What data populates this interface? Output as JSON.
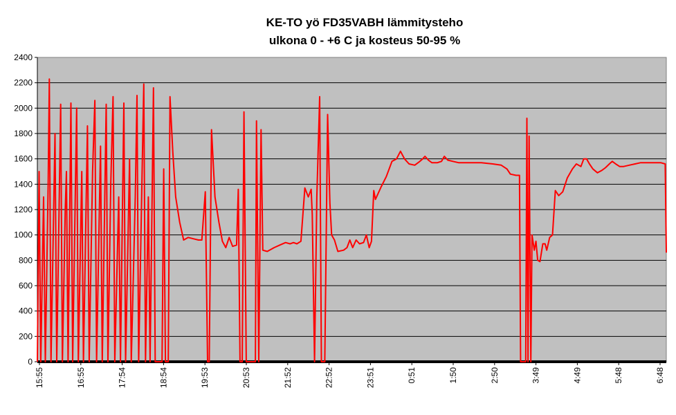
{
  "chart_data": {
    "type": "line",
    "title": "KE-TO yö FD35VABH lämmitysteho",
    "subtitle": "ulkona 0 - +6 C ja kosteus 50-95 %",
    "xlabel": "",
    "ylabel": "",
    "ylim": [
      0,
      2400
    ],
    "yticks": [
      "0",
      "200",
      "400",
      "600",
      "800",
      "1000",
      "1200",
      "1400",
      "1600",
      "1800",
      "2000",
      "2200",
      "2400"
    ],
    "xticks": [
      "15:55",
      "16:55",
      "17:54",
      "18:54",
      "19:53",
      "20:53",
      "21:52",
      "22:52",
      "23:51",
      "0:51",
      "1:50",
      "2:50",
      "3:49",
      "4:49",
      "5:48",
      "6:48"
    ],
    "grid": "horizontal",
    "legend": "none",
    "background_color": "#c0c0c0",
    "series": [
      {
        "color": "#ff0000",
        "points": [
          [
            0,
            0
          ],
          [
            0.3,
            1500
          ],
          [
            0.6,
            0
          ],
          [
            1.1,
            1300
          ],
          [
            1.4,
            0
          ],
          [
            1.9,
            1400
          ],
          [
            2.1,
            2230
          ],
          [
            2.4,
            0
          ],
          [
            3.1,
            1800
          ],
          [
            3.4,
            0
          ],
          [
            4.1,
            2030
          ],
          [
            4.4,
            0
          ],
          [
            4.9,
            1200
          ],
          [
            5.1,
            1500
          ],
          [
            5.4,
            0
          ],
          [
            5.9,
            2040
          ],
          [
            6.2,
            0
          ],
          [
            6.9,
            2000
          ],
          [
            7.2,
            0
          ],
          [
            7.8,
            1500
          ],
          [
            8.1,
            0
          ],
          [
            8.8,
            1860
          ],
          [
            9.1,
            0
          ],
          [
            9.7,
            1500
          ],
          [
            10.1,
            2060
          ],
          [
            10.4,
            0
          ],
          [
            11.1,
            1700
          ],
          [
            11.4,
            0
          ],
          [
            12.1,
            2030
          ],
          [
            12.4,
            0
          ],
          [
            12.9,
            1400
          ],
          [
            13.3,
            2090
          ],
          [
            13.6,
            0
          ],
          [
            14.3,
            1300
          ],
          [
            14.6,
            0
          ],
          [
            15.2,
            2040
          ],
          [
            15.5,
            0
          ],
          [
            16.2,
            1600
          ],
          [
            16.5,
            0
          ],
          [
            17.2,
            1300
          ],
          [
            17.5,
            2100
          ],
          [
            17.8,
            0
          ],
          [
            18.4,
            1500
          ],
          [
            18.7,
            2190
          ],
          [
            19.0,
            0
          ],
          [
            19.5,
            1300
          ],
          [
            19.8,
            0
          ],
          [
            20.4,
            2160
          ],
          [
            20.7,
            0
          ],
          [
            21.1,
            0
          ],
          [
            21.9,
            0
          ],
          [
            22.2,
            1520
          ],
          [
            22.5,
            0
          ],
          [
            23.0,
            0
          ],
          [
            23.3,
            2090
          ],
          [
            23.8,
            1650
          ],
          [
            24.3,
            1300
          ],
          [
            25.0,
            1100
          ],
          [
            25.7,
            960
          ],
          [
            26.5,
            980
          ],
          [
            27.4,
            970
          ],
          [
            28.3,
            960
          ],
          [
            28.9,
            960
          ],
          [
            29.5,
            1340
          ],
          [
            29.9,
            0
          ],
          [
            30.2,
            0
          ],
          [
            30.6,
            1830
          ],
          [
            31.2,
            1300
          ],
          [
            31.9,
            1100
          ],
          [
            32.5,
            950
          ],
          [
            33.1,
            900
          ],
          [
            33.7,
            980
          ],
          [
            34.3,
            910
          ],
          [
            35.0,
            920
          ],
          [
            35.3,
            1360
          ],
          [
            35.6,
            0
          ],
          [
            36.0,
            0
          ],
          [
            36.3,
            1970
          ],
          [
            36.7,
            0
          ],
          [
            37.6,
            0
          ],
          [
            38.3,
            0
          ],
          [
            38.5,
            1900
          ],
          [
            38.9,
            0
          ],
          [
            39.3,
            1830
          ],
          [
            39.6,
            880
          ],
          [
            40.4,
            870
          ],
          [
            41.6,
            900
          ],
          [
            42.6,
            920
          ],
          [
            43.6,
            940
          ],
          [
            44.4,
            930
          ],
          [
            45.0,
            940
          ],
          [
            45.6,
            930
          ],
          [
            46.3,
            950
          ],
          [
            47.0,
            1370
          ],
          [
            47.6,
            1300
          ],
          [
            48.1,
            1360
          ],
          [
            48.3,
            1160
          ],
          [
            48.7,
            0
          ],
          [
            49.1,
            1300
          ],
          [
            49.6,
            2090
          ],
          [
            49.9,
            0
          ],
          [
            50.5,
            0
          ],
          [
            51.0,
            1950
          ],
          [
            51.4,
            1250
          ],
          [
            51.7,
            1000
          ],
          [
            52.2,
            960
          ],
          [
            52.8,
            870
          ],
          [
            53.8,
            880
          ],
          [
            54.4,
            900
          ],
          [
            54.9,
            960
          ],
          [
            55.4,
            900
          ],
          [
            56.0,
            960
          ],
          [
            56.6,
            930
          ],
          [
            57.3,
            940
          ],
          [
            57.8,
            1000
          ],
          [
            58.3,
            900
          ],
          [
            58.7,
            950
          ],
          [
            59.1,
            1350
          ],
          [
            59.4,
            1280
          ],
          [
            60.4,
            1380
          ],
          [
            61.3,
            1460
          ],
          [
            62.3,
            1580
          ],
          [
            63.1,
            1600
          ],
          [
            63.8,
            1660
          ],
          [
            64.5,
            1600
          ],
          [
            65.3,
            1560
          ],
          [
            66.3,
            1550
          ],
          [
            67.2,
            1580
          ],
          [
            67.7,
            1600
          ],
          [
            68.1,
            1620
          ],
          [
            68.7,
            1590
          ],
          [
            69.3,
            1570
          ],
          [
            70.3,
            1570
          ],
          [
            71.0,
            1580
          ],
          [
            71.5,
            1620
          ],
          [
            72.1,
            1590
          ],
          [
            73.0,
            1580
          ],
          [
            74.0,
            1570
          ],
          [
            76.0,
            1570
          ],
          [
            78.0,
            1570
          ],
          [
            80.0,
            1560
          ],
          [
            81.5,
            1550
          ],
          [
            82.5,
            1520
          ],
          [
            83.1,
            1480
          ],
          [
            84.1,
            1470
          ],
          [
            84.7,
            1470
          ],
          [
            84.9,
            0
          ],
          [
            85.8,
            0
          ],
          [
            86.0,
            1920
          ],
          [
            86.2,
            0
          ],
          [
            86.4,
            1780
          ],
          [
            86.7,
            0
          ],
          [
            86.9,
            1000
          ],
          [
            87.3,
            880
          ],
          [
            87.6,
            950
          ],
          [
            87.9,
            800
          ],
          [
            88.3,
            790
          ],
          [
            88.8,
            930
          ],
          [
            89.2,
            930
          ],
          [
            89.5,
            880
          ],
          [
            90.0,
            980
          ],
          [
            90.5,
            1000
          ],
          [
            91.0,
            1350
          ],
          [
            91.6,
            1310
          ],
          [
            92.3,
            1340
          ],
          [
            93.1,
            1450
          ],
          [
            94.0,
            1520
          ],
          [
            94.7,
            1560
          ],
          [
            95.5,
            1540
          ],
          [
            96.0,
            1600
          ],
          [
            96.5,
            1600
          ],
          [
            97.0,
            1560
          ],
          [
            97.6,
            1520
          ],
          [
            98.4,
            1490
          ],
          [
            99.2,
            1510
          ],
          [
            99.8,
            1530
          ],
          [
            100.5,
            1560
          ],
          [
            101.0,
            1580
          ],
          [
            101.6,
            1560
          ],
          [
            102.3,
            1540
          ],
          [
            103.0,
            1540
          ],
          [
            104.0,
            1550
          ],
          [
            105.0,
            1560
          ],
          [
            106.0,
            1570
          ],
          [
            107.5,
            1570
          ],
          [
            108.5,
            1570
          ],
          [
            109.5,
            1570
          ],
          [
            110.3,
            1560
          ],
          [
            110.5,
            860
          ]
        ]
      }
    ]
  }
}
